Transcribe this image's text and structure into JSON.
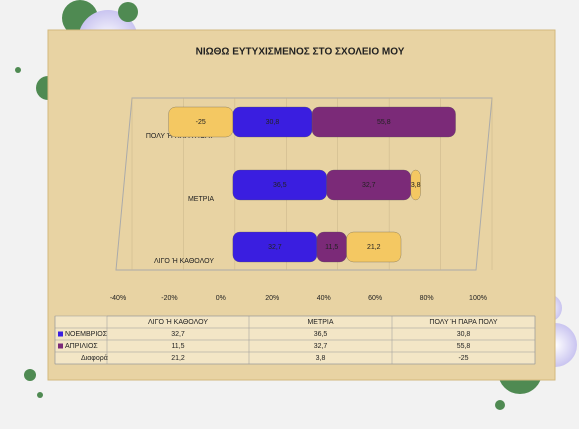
{
  "chart_data": {
    "type": "bar",
    "orientation": "horizontal",
    "stacked": true,
    "title": "ΝΙΩΘΩ ΕΥΤΥΧΙΣΜΕΝΟΣ ΣΤΟ ΣΧΟΛΕΙΟ ΜΟΥ",
    "categories": [
      "ΛΙΓΟ Ή ΚΑΘΟΛΟΥ",
      "ΜΕΤΡΙΑ",
      "ΠΟΛΥ Ή ΠΑΡΑ ΠΟΛΥ"
    ],
    "series": [
      {
        "name": "ΝΟΕΜΒΡΙΟΣ",
        "color": "#3a1ee0",
        "values": [
          32.7,
          36.5,
          30.8
        ],
        "value_labels": [
          "32,7",
          "36,5",
          "30,8"
        ]
      },
      {
        "name": "ΑΠΡΙΛΙΟΣ",
        "color": "#7b2a78",
        "values": [
          11.5,
          32.7,
          55.8
        ],
        "value_labels": [
          "11,5",
          "32,7",
          "55,8"
        ]
      },
      {
        "name": "Διαφορά",
        "color": "#f4c862",
        "values": [
          21.2,
          3.8,
          -25
        ],
        "value_labels": [
          "21,2",
          "3,8",
          "-25"
        ]
      }
    ],
    "xlim": [
      -40,
      100
    ],
    "xticks": [
      {
        "value": -40,
        "label": "-40%"
      },
      {
        "value": -20,
        "label": "-20%"
      },
      {
        "value": 0,
        "label": "0%"
      },
      {
        "value": 20,
        "label": "20%"
      },
      {
        "value": 40,
        "label": "40%"
      },
      {
        "value": 60,
        "label": "60%"
      },
      {
        "value": 80,
        "label": "80%"
      },
      {
        "value": 100,
        "label": "100%"
      }
    ]
  }
}
